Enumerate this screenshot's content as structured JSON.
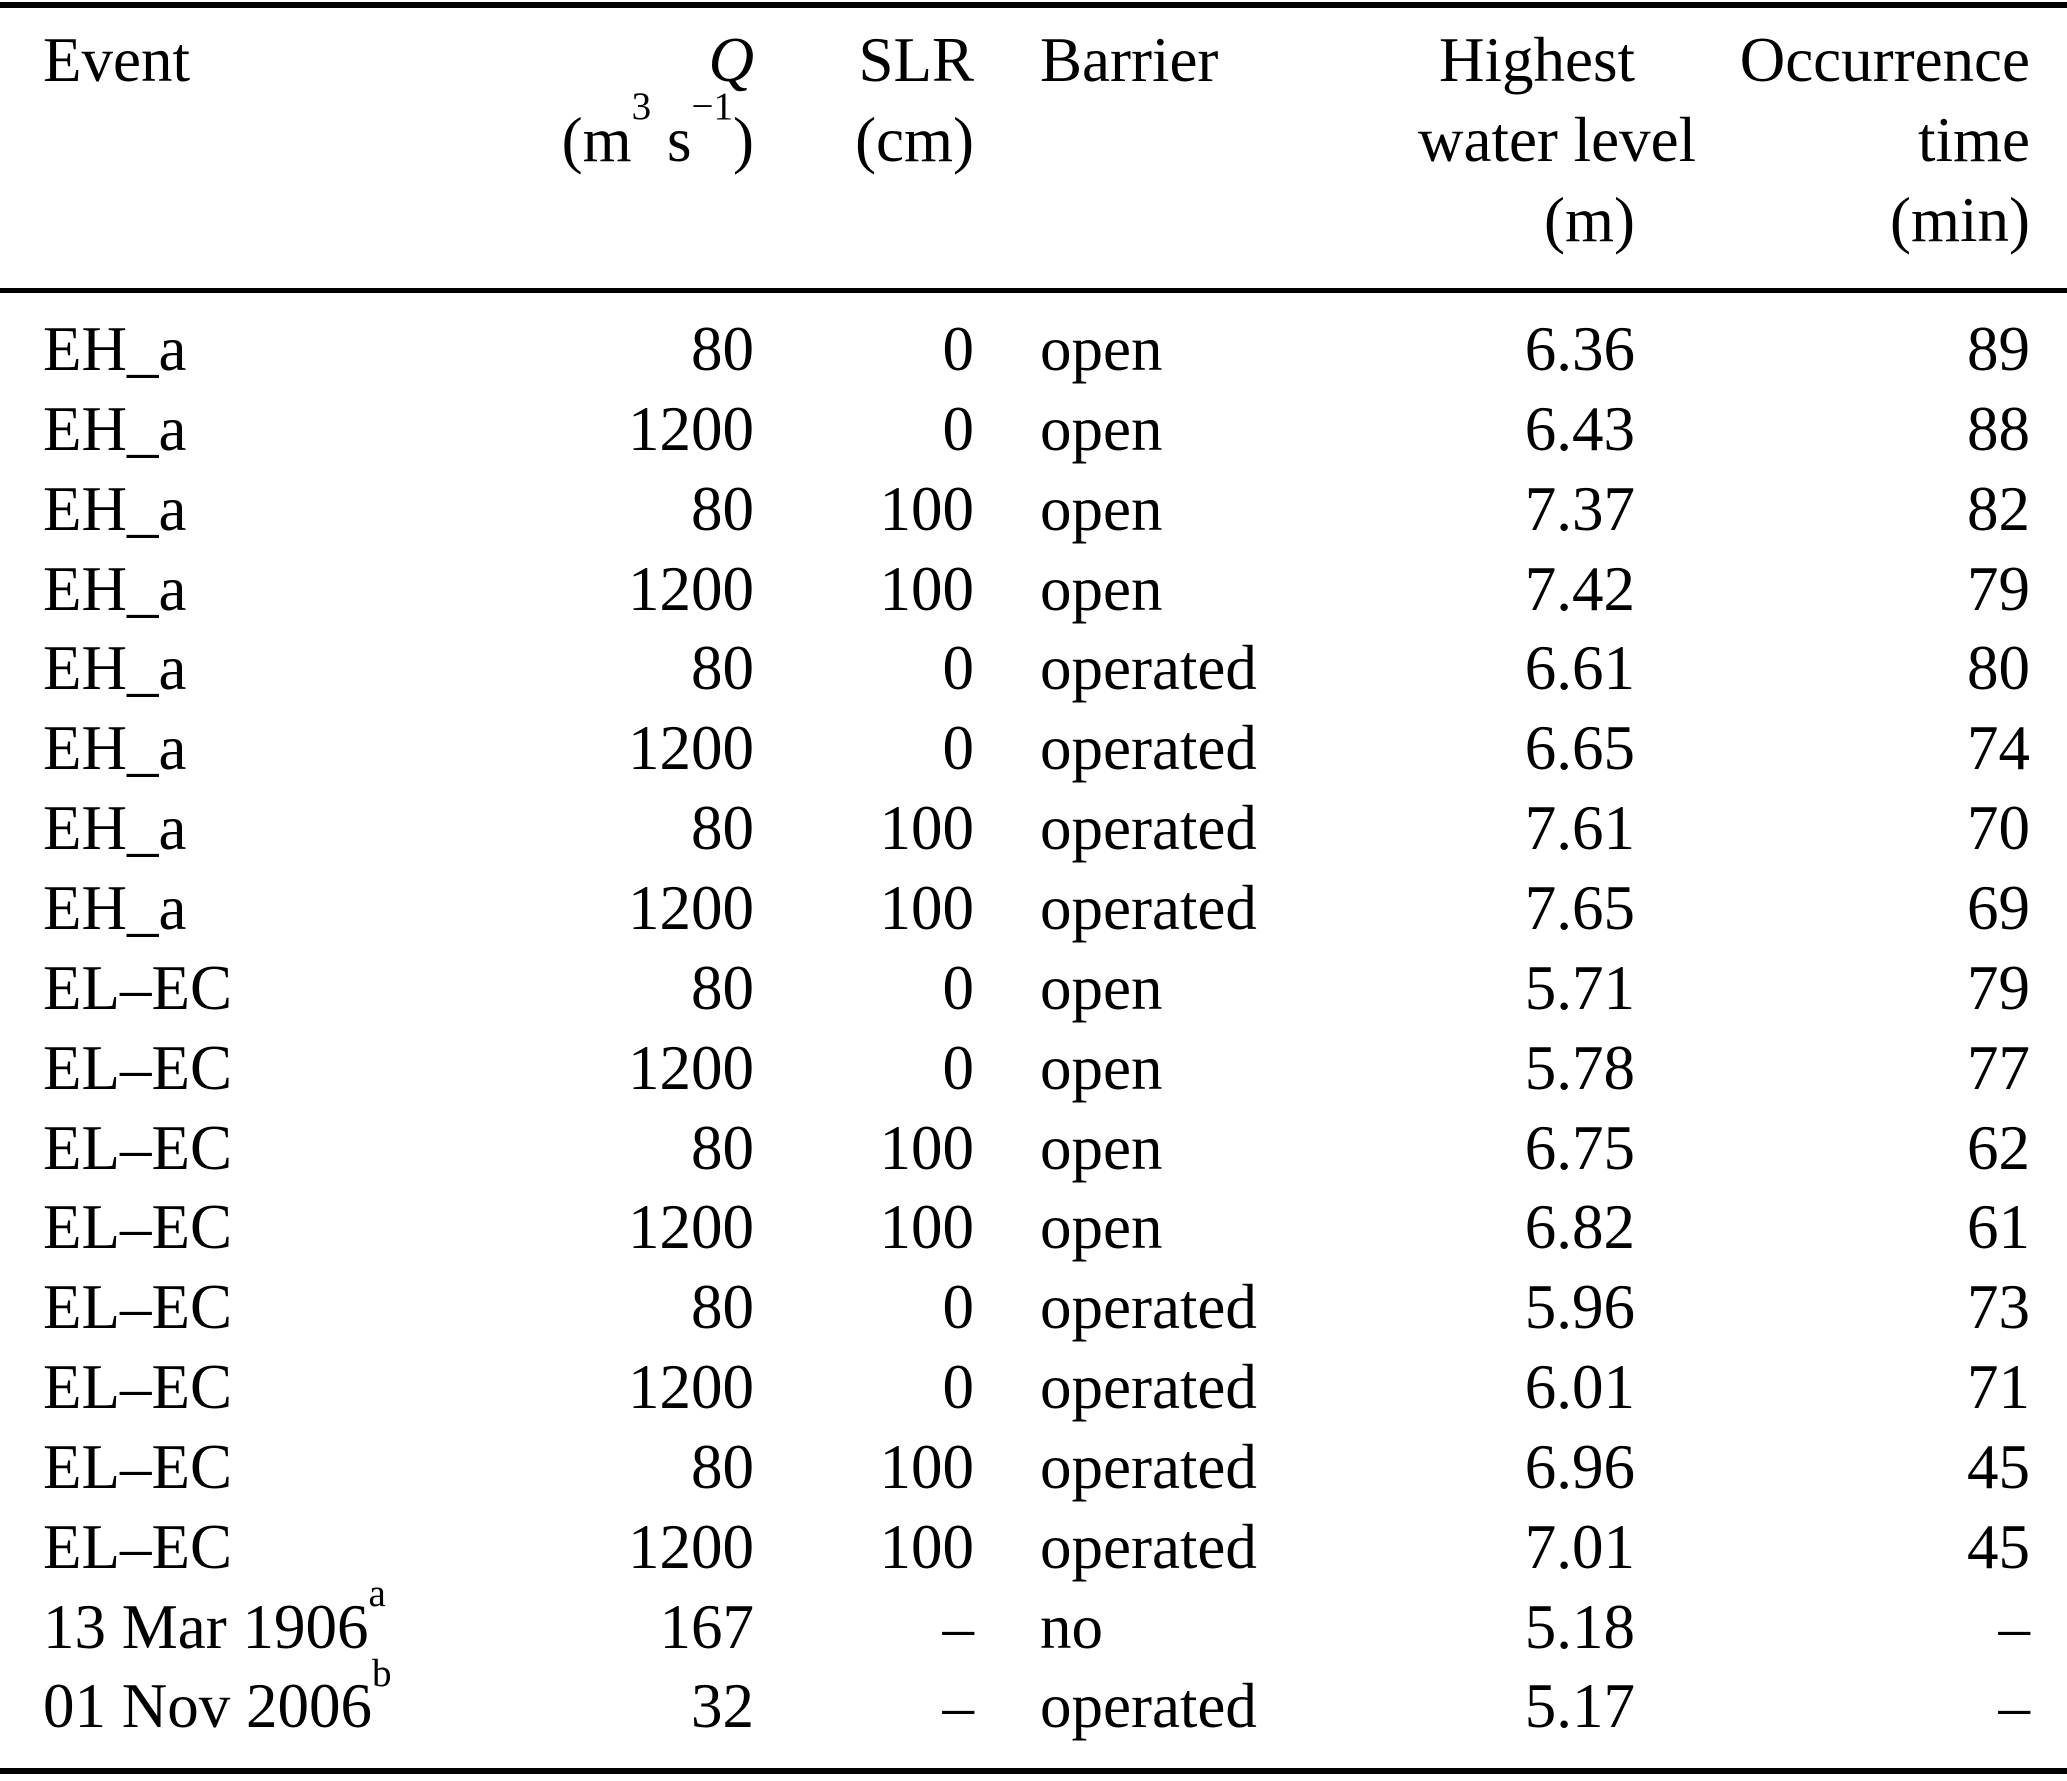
{
  "colors": {
    "background": "#ffffff",
    "text": "#000000",
    "rule": "#000000"
  },
  "header": {
    "event": "Event",
    "q_symbol": "Q",
    "q_unit": {
      "pre": "(m",
      "sup1": "3",
      "mid": " s",
      "sup2": "−1",
      "post": ")"
    },
    "slr": "SLR",
    "slr_unit": "(cm)",
    "barrier": "Barrier",
    "hwl_line1": "Highest",
    "hwl_line2": "water level",
    "hwl_line3": "(m)",
    "time_line1": "Occurrence",
    "time_line2": "time",
    "time_line3": "(min)"
  },
  "table": {
    "columns": [
      "Event",
      "Q (m3 s−1)",
      "SLR (cm)",
      "Barrier",
      "Highest water level (m)",
      "Occurrence time (min)"
    ],
    "rows": [
      {
        "event": "EH_a",
        "event_sup": "",
        "q": "80",
        "slr": "0",
        "barrier": "open",
        "hwl": "6.36",
        "time": "89"
      },
      {
        "event": "EH_a",
        "event_sup": "",
        "q": "1200",
        "slr": "0",
        "barrier": "open",
        "hwl": "6.43",
        "time": "88"
      },
      {
        "event": "EH_a",
        "event_sup": "",
        "q": "80",
        "slr": "100",
        "barrier": "open",
        "hwl": "7.37",
        "time": "82"
      },
      {
        "event": "EH_a",
        "event_sup": "",
        "q": "1200",
        "slr": "100",
        "barrier": "open",
        "hwl": "7.42",
        "time": "79"
      },
      {
        "event": "EH_a",
        "event_sup": "",
        "q": "80",
        "slr": "0",
        "barrier": "operated",
        "hwl": "6.61",
        "time": "80"
      },
      {
        "event": "EH_a",
        "event_sup": "",
        "q": "1200",
        "slr": "0",
        "barrier": "operated",
        "hwl": "6.65",
        "time": "74"
      },
      {
        "event": "EH_a",
        "event_sup": "",
        "q": "80",
        "slr": "100",
        "barrier": "operated",
        "hwl": "7.61",
        "time": "70"
      },
      {
        "event": "EH_a",
        "event_sup": "",
        "q": "1200",
        "slr": "100",
        "barrier": "operated",
        "hwl": "7.65",
        "time": "69"
      },
      {
        "event": "EL–EC",
        "event_sup": "",
        "q": "80",
        "slr": "0",
        "barrier": "open",
        "hwl": "5.71",
        "time": "79"
      },
      {
        "event": "EL–EC",
        "event_sup": "",
        "q": "1200",
        "slr": "0",
        "barrier": "open",
        "hwl": "5.78",
        "time": "77"
      },
      {
        "event": "EL–EC",
        "event_sup": "",
        "q": "80",
        "slr": "100",
        "barrier": "open",
        "hwl": "6.75",
        "time": "62"
      },
      {
        "event": "EL–EC",
        "event_sup": "",
        "q": "1200",
        "slr": "100",
        "barrier": "open",
        "hwl": "6.82",
        "time": "61"
      },
      {
        "event": "EL–EC",
        "event_sup": "",
        "q": "80",
        "slr": "0",
        "barrier": "operated",
        "hwl": "5.96",
        "time": "73"
      },
      {
        "event": "EL–EC",
        "event_sup": "",
        "q": "1200",
        "slr": "0",
        "barrier": "operated",
        "hwl": "6.01",
        "time": "71"
      },
      {
        "event": "EL–EC",
        "event_sup": "",
        "q": "80",
        "slr": "100",
        "barrier": "operated",
        "hwl": "6.96",
        "time": "45"
      },
      {
        "event": "EL–EC",
        "event_sup": "",
        "q": "1200",
        "slr": "100",
        "barrier": "operated",
        "hwl": "7.01",
        "time": "45"
      },
      {
        "event": "13 Mar 1906",
        "event_sup": "a",
        "q": "167",
        "slr": "–",
        "barrier": "no",
        "hwl": "5.18",
        "time": "–"
      },
      {
        "event": "01 Nov 2006",
        "event_sup": "b",
        "q": "32",
        "slr": "–",
        "barrier": "operated",
        "hwl": "5.17",
        "time": "–"
      }
    ]
  }
}
